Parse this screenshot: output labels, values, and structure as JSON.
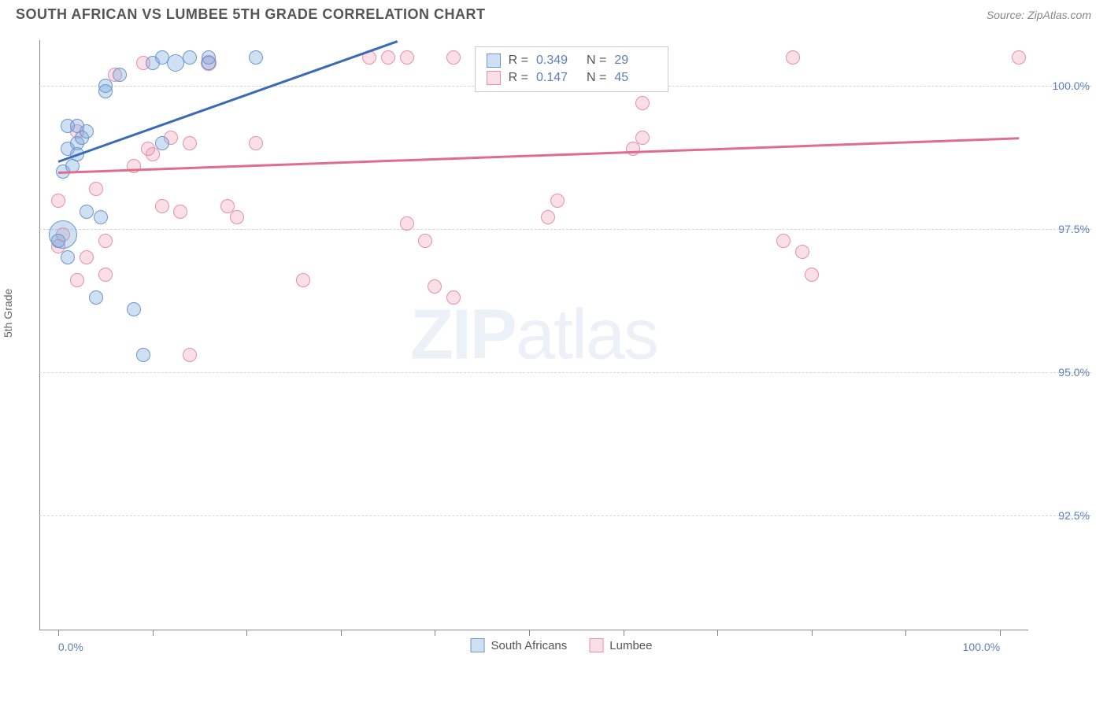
{
  "title": "SOUTH AFRICAN VS LUMBEE 5TH GRADE CORRELATION CHART",
  "source": "Source: ZipAtlas.com",
  "y_axis_label": "5th Grade",
  "watermark": {
    "bold": "ZIP",
    "light": "atlas"
  },
  "colors": {
    "blue_fill": "rgba(120,165,220,0.35)",
    "blue_stroke": "#6b96cf",
    "blue_line": "#3a6bb5",
    "pink_fill": "rgba(240,150,175,0.30)",
    "pink_stroke": "#e590a8",
    "pink_line": "#e06d8e",
    "axis": "#888888",
    "label_blue": "#5b7fb8",
    "text_gray": "#666666"
  },
  "x_range": [
    -2,
    103
  ],
  "y_range": [
    90.5,
    100.8
  ],
  "y_gridlines": [
    {
      "value": 100.0,
      "label": "100.0%"
    },
    {
      "value": 97.5,
      "label": "97.5%"
    },
    {
      "value": 95.0,
      "label": "95.0%"
    },
    {
      "value": 92.5,
      "label": "92.5%"
    }
  ],
  "x_ticks": [
    0,
    10,
    20,
    30,
    40,
    50,
    60,
    70,
    80,
    90,
    100
  ],
  "x_labels": [
    {
      "value": 0,
      "label": "0.0%",
      "align": "left"
    },
    {
      "value": 100,
      "label": "100.0%",
      "align": "right"
    }
  ],
  "legend_stats": [
    {
      "series": "blue",
      "R": "0.349",
      "N": "29"
    },
    {
      "series": "pink",
      "R": "0.147",
      "N": "45"
    }
  ],
  "legend_bottom": [
    {
      "series": "blue",
      "label": "South Africans"
    },
    {
      "series": "pink",
      "label": "Lumbee"
    }
  ],
  "series_blue": {
    "marker_radius": 9,
    "regression": {
      "x1": 0,
      "y1": 98.7,
      "x2": 36,
      "y2": 100.8
    },
    "points": [
      {
        "x": 1.5,
        "y": 98.6,
        "r": 9
      },
      {
        "x": 0.5,
        "y": 97.4,
        "r": 18
      },
      {
        "x": 5,
        "y": 100.0,
        "r": 9
      },
      {
        "x": 6.5,
        "y": 100.2,
        "r": 9
      },
      {
        "x": 5,
        "y": 99.9,
        "r": 9
      },
      {
        "x": 1,
        "y": 98.9,
        "r": 9
      },
      {
        "x": 2,
        "y": 99.0,
        "r": 9
      },
      {
        "x": 10,
        "y": 100.4,
        "r": 9
      },
      {
        "x": 11,
        "y": 100.5,
        "r": 9
      },
      {
        "x": 12.5,
        "y": 100.4,
        "r": 11
      },
      {
        "x": 14,
        "y": 100.5,
        "r": 9
      },
      {
        "x": 16,
        "y": 100.4,
        "r": 9
      },
      {
        "x": 16,
        "y": 100.5,
        "r": 9
      },
      {
        "x": 21,
        "y": 100.5,
        "r": 9
      },
      {
        "x": 11,
        "y": 99.0,
        "r": 9
      },
      {
        "x": 3,
        "y": 97.8,
        "r": 9
      },
      {
        "x": 2,
        "y": 98.8,
        "r": 9
      },
      {
        "x": 0.5,
        "y": 98.5,
        "r": 9
      },
      {
        "x": 4,
        "y": 96.3,
        "r": 9
      },
      {
        "x": 8,
        "y": 96.1,
        "r": 9
      },
      {
        "x": 9,
        "y": 95.3,
        "r": 9
      },
      {
        "x": 2.5,
        "y": 99.1,
        "r": 9
      },
      {
        "x": 4.5,
        "y": 97.7,
        "r": 9
      },
      {
        "x": 0,
        "y": 97.3,
        "r": 9
      },
      {
        "x": 1,
        "y": 97.0,
        "r": 9
      },
      {
        "x": 3,
        "y": 99.2,
        "r": 9
      },
      {
        "x": 52,
        "y": 100.5,
        "r": 10
      },
      {
        "x": 1,
        "y": 99.3,
        "r": 9
      },
      {
        "x": 2,
        "y": 99.3,
        "r": 9
      }
    ]
  },
  "series_pink": {
    "marker_radius": 9,
    "regression": {
      "x1": 0,
      "y1": 98.5,
      "x2": 102,
      "y2": 99.1
    },
    "points": [
      {
        "x": 0,
        "y": 98.0,
        "r": 9
      },
      {
        "x": 0.5,
        "y": 97.4,
        "r": 9
      },
      {
        "x": 2,
        "y": 99.2,
        "r": 9
      },
      {
        "x": 3,
        "y": 97.0,
        "r": 9
      },
      {
        "x": 5,
        "y": 97.3,
        "r": 9
      },
      {
        "x": 8,
        "y": 98.6,
        "r": 9
      },
      {
        "x": 9,
        "y": 100.4,
        "r": 9
      },
      {
        "x": 10,
        "y": 98.8,
        "r": 9
      },
      {
        "x": 11,
        "y": 97.9,
        "r": 9
      },
      {
        "x": 12,
        "y": 99.1,
        "r": 9
      },
      {
        "x": 13,
        "y": 97.8,
        "r": 9
      },
      {
        "x": 14,
        "y": 99.0,
        "r": 9
      },
      {
        "x": 16,
        "y": 100.4,
        "r": 10
      },
      {
        "x": 18,
        "y": 97.9,
        "r": 9
      },
      {
        "x": 19,
        "y": 97.7,
        "r": 9
      },
      {
        "x": 21,
        "y": 99.0,
        "r": 9
      },
      {
        "x": 14,
        "y": 95.3,
        "r": 9
      },
      {
        "x": 2,
        "y": 96.6,
        "r": 9
      },
      {
        "x": 5,
        "y": 96.7,
        "r": 9
      },
      {
        "x": 35,
        "y": 100.5,
        "r": 9
      },
      {
        "x": 37,
        "y": 100.5,
        "r": 9
      },
      {
        "x": 37,
        "y": 97.6,
        "r": 9
      },
      {
        "x": 26,
        "y": 96.6,
        "r": 9
      },
      {
        "x": 42,
        "y": 100.5,
        "r": 9
      },
      {
        "x": 39,
        "y": 97.3,
        "r": 9
      },
      {
        "x": 52,
        "y": 97.7,
        "r": 9
      },
      {
        "x": 53,
        "y": 98.0,
        "r": 9
      },
      {
        "x": 40,
        "y": 96.5,
        "r": 9
      },
      {
        "x": 42,
        "y": 96.3,
        "r": 9
      },
      {
        "x": 55,
        "y": 100.5,
        "r": 9
      },
      {
        "x": 61,
        "y": 100.5,
        "r": 9
      },
      {
        "x": 61,
        "y": 98.9,
        "r": 9
      },
      {
        "x": 62,
        "y": 100.4,
        "r": 9
      },
      {
        "x": 62,
        "y": 99.7,
        "r": 9
      },
      {
        "x": 62,
        "y": 99.1,
        "r": 9
      },
      {
        "x": 77,
        "y": 97.3,
        "r": 9
      },
      {
        "x": 80,
        "y": 96.7,
        "r": 9
      },
      {
        "x": 78,
        "y": 100.5,
        "r": 9
      },
      {
        "x": 79,
        "y": 97.1,
        "r": 9
      },
      {
        "x": 102,
        "y": 100.5,
        "r": 9
      },
      {
        "x": 9.5,
        "y": 98.9,
        "r": 9
      },
      {
        "x": 4,
        "y": 98.2,
        "r": 9
      },
      {
        "x": 33,
        "y": 100.5,
        "r": 9
      },
      {
        "x": 6,
        "y": 100.2,
        "r": 9
      },
      {
        "x": 0,
        "y": 97.2,
        "r": 9
      }
    ]
  }
}
